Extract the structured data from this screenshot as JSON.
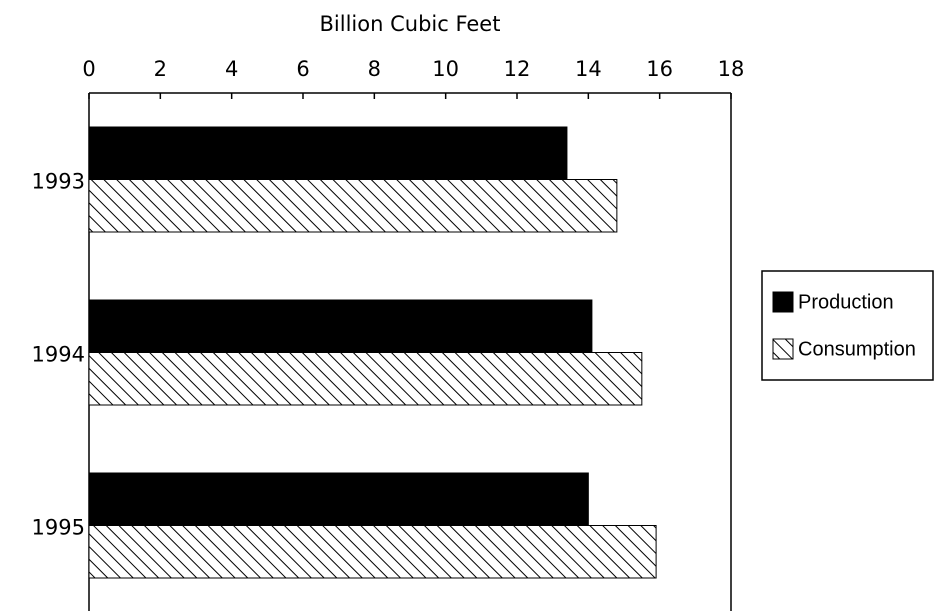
{
  "chart_data": {
    "type": "bar",
    "orientation": "horizontal",
    "x_axis_position": "top",
    "xlabel": "Billion Cubic Feet",
    "categories": [
      "1993",
      "1994",
      "1995"
    ],
    "series": [
      {
        "name": "Production",
        "color": "#000000",
        "pattern": "solid",
        "values": [
          13.4,
          14.1,
          14.0
        ]
      },
      {
        "name": "Consumption",
        "color": "#000000",
        "pattern": "hatch",
        "values": [
          14.8,
          15.5,
          15.9
        ]
      }
    ],
    "xlim": [
      0,
      18
    ],
    "xticks": [
      0,
      2,
      4,
      6,
      8,
      10,
      12,
      14,
      16,
      18
    ],
    "grid": false,
    "legend": "right"
  }
}
